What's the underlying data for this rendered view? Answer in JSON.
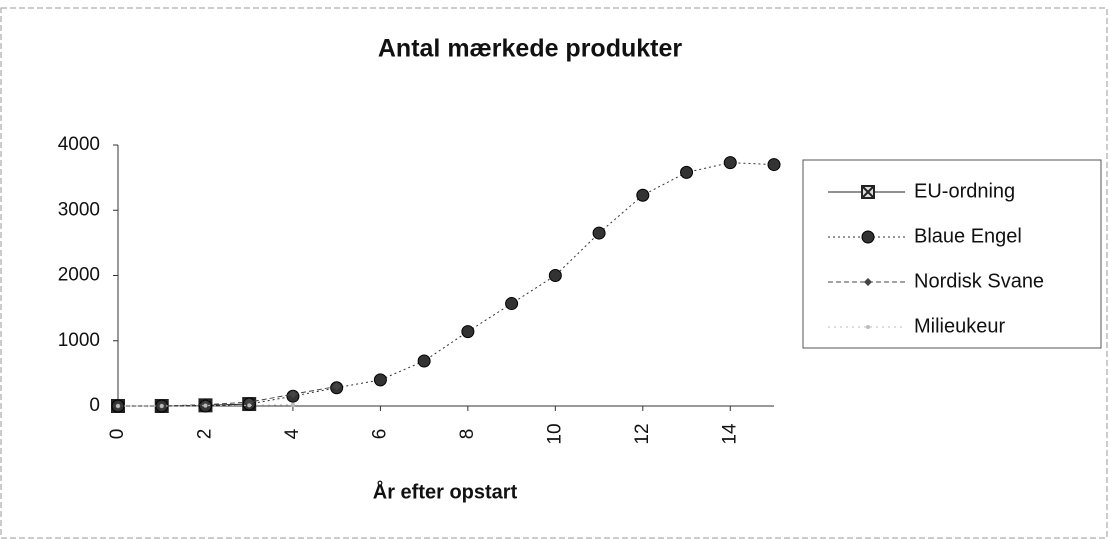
{
  "chart_data": {
    "type": "line",
    "title": "Antal mærkede produkter",
    "x_label": "År efter opstart",
    "xlim": [
      0,
      15
    ],
    "xticks": [
      0,
      2,
      4,
      6,
      8,
      10,
      12,
      14
    ],
    "ylim": [
      0,
      4000
    ],
    "yticks": [
      0,
      1000,
      2000,
      3000,
      4000
    ],
    "grid": false,
    "legend": "right",
    "series": [
      {
        "name": "EU-ordning",
        "color": "#222222",
        "marker": "square-x",
        "x": [
          0,
          1,
          2,
          3
        ],
        "values": [
          0,
          0,
          10,
          30
        ]
      },
      {
        "name": "Blaue Engel",
        "color": "#333333",
        "marker": "circle",
        "x": [
          0,
          1,
          2,
          3,
          4,
          5,
          6,
          7,
          8,
          9,
          10,
          11,
          12,
          13,
          14,
          15
        ],
        "values": [
          0,
          0,
          0,
          30,
          150,
          280,
          400,
          690,
          1140,
          1570,
          2000,
          2650,
          3230,
          3580,
          3730,
          3700
        ]
      },
      {
        "name": "Nordisk Svane",
        "color": "#444444",
        "marker": "diamond",
        "x": [
          0,
          1,
          2,
          3,
          4,
          5
        ],
        "values": [
          0,
          0,
          20,
          60,
          180,
          300
        ]
      },
      {
        "name": "Milieukeur",
        "color": "#bbbbbb",
        "marker": "dot",
        "x": [
          0,
          1,
          2,
          3,
          4
        ],
        "values": [
          0,
          0,
          5,
          10,
          20
        ]
      }
    ]
  }
}
